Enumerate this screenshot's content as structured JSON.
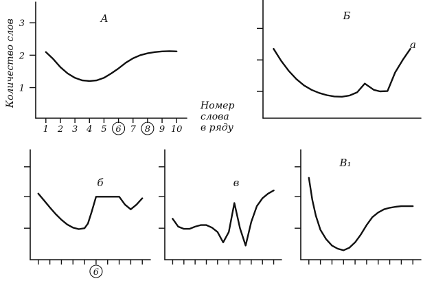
{
  "chart_data": [
    {
      "type": "line",
      "title": "А",
      "ylabel": "Количество слов",
      "xlabel": [
        "Номер",
        "слова",
        "в ряду"
      ],
      "y_ticks": [
        "1",
        "2",
        "3"
      ],
      "ylim": [
        0,
        3.6
      ],
      "x_ticks": [
        "1",
        "2",
        "3",
        "4",
        "5",
        "6",
        "7",
        "8",
        "9",
        "10"
      ],
      "circled_ticks": [
        "6",
        "8"
      ],
      "xlim": [
        0.3,
        10.7
      ],
      "series": [
        {
          "x": [
            1,
            1.5,
            2,
            2.5,
            3,
            3.5,
            4,
            4.5,
            5,
            5.5,
            6,
            6.5,
            7,
            7.5,
            8,
            8.5,
            9,
            9.5,
            10
          ],
          "y": [
            2.1,
            1.88,
            1.62,
            1.42,
            1.28,
            1.2,
            1.18,
            1.2,
            1.28,
            1.42,
            1.58,
            1.76,
            1.9,
            2.0,
            2.06,
            2.1,
            2.12,
            2.13,
            2.12
          ]
        }
      ]
    },
    {
      "type": "line",
      "title": "Б",
      "curve_label": "а",
      "xlim": [
        0.3,
        10.7
      ],
      "ylim": [
        0,
        3.6
      ],
      "series": [
        {
          "x": [
            1,
            1.5,
            2,
            2.5,
            3,
            3.5,
            4,
            4.5,
            5,
            5.5,
            6,
            6.5,
            7,
            7.3,
            7.6,
            8,
            8.5,
            9,
            9.5,
            10
          ],
          "y": [
            2.2,
            1.82,
            1.5,
            1.24,
            1.04,
            0.9,
            0.8,
            0.73,
            0.69,
            0.68,
            0.72,
            0.82,
            1.1,
            1.0,
            0.9,
            0.85,
            0.86,
            1.45,
            1.85,
            2.2
          ]
        }
      ]
    },
    {
      "type": "line",
      "title": "б",
      "circled_ticks": [
        "6"
      ],
      "xlim": [
        0.3,
        10.7
      ],
      "ylim": [
        0,
        3.6
      ],
      "series": [
        {
          "x": [
            1,
            1.5,
            2,
            2.5,
            3,
            3.5,
            4,
            4.5,
            5,
            5.3,
            5.6,
            6,
            6.5,
            7,
            7.5,
            8,
            8.5,
            9,
            9.5,
            10
          ],
          "y": [
            2.1,
            1.88,
            1.66,
            1.45,
            1.27,
            1.12,
            1.02,
            0.97,
            1.0,
            1.15,
            1.5,
            2.0,
            2.0,
            2.0,
            2.0,
            2.0,
            1.75,
            1.6,
            1.75,
            1.95
          ]
        }
      ]
    },
    {
      "type": "line",
      "title": "в",
      "xlim": [
        0.3,
        10.7
      ],
      "ylim": [
        0,
        3.6
      ],
      "series": [
        {
          "x": [
            1,
            1.5,
            2,
            2.5,
            3,
            3.5,
            4,
            4.5,
            5,
            5.5,
            6,
            6.5,
            7,
            7.5,
            8,
            8.5,
            9,
            9.5,
            10
          ],
          "y": [
            1.3,
            1.05,
            0.98,
            0.98,
            1.05,
            1.1,
            1.1,
            1.02,
            0.88,
            0.55,
            0.88,
            1.8,
            1.0,
            0.45,
            1.2,
            1.7,
            1.95,
            2.1,
            2.2
          ]
        }
      ]
    },
    {
      "type": "line",
      "title": "В₁",
      "xlim": [
        0.3,
        10.7
      ],
      "ylim": [
        0,
        3.6
      ],
      "series": [
        {
          "x": [
            1,
            1.3,
            1.6,
            2,
            2.5,
            3,
            3.5,
            4,
            4.5,
            5,
            5.5,
            6,
            6.5,
            7,
            7.5,
            8,
            8.5,
            9,
            9.5,
            10
          ],
          "y": [
            2.6,
            1.9,
            1.4,
            0.95,
            0.65,
            0.45,
            0.35,
            0.3,
            0.38,
            0.55,
            0.8,
            1.1,
            1.35,
            1.5,
            1.6,
            1.65,
            1.68,
            1.7,
            1.7,
            1.7
          ]
        }
      ]
    }
  ]
}
